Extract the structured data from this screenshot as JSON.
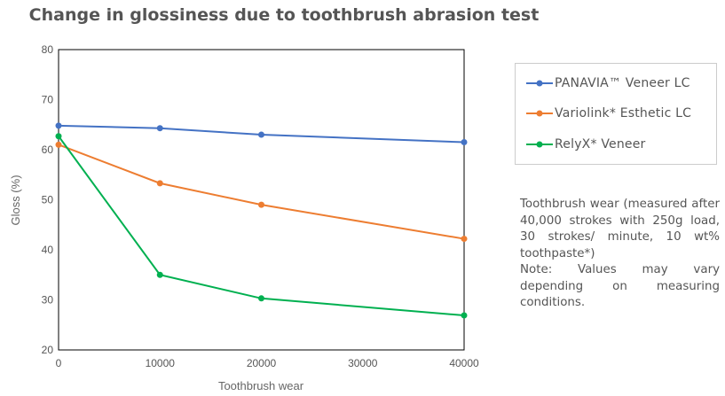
{
  "chart_data": {
    "type": "line",
    "title": "Change in glossiness due to toothbrush abrasion test",
    "xlabel": "Toothbrush wear",
    "ylabel": "Gloss (%)",
    "xlim": [
      0,
      40000
    ],
    "ylim": [
      20,
      80
    ],
    "xticks": [
      0,
      10000,
      20000,
      30000,
      40000
    ],
    "yticks": [
      20,
      30,
      40,
      50,
      60,
      70,
      80
    ],
    "grid": false,
    "legend_position": "right",
    "x": [
      0,
      10000,
      20000,
      40000
    ],
    "series": [
      {
        "name": "PANAVIA™ Veneer LC",
        "color": "#4472c4",
        "values": [
          64.8,
          64.3,
          63.0,
          61.5
        ]
      },
      {
        "name": "Variolink* Esthetic LC",
        "color": "#ed7d31",
        "values": [
          61.0,
          53.3,
          49.0,
          42.2
        ]
      },
      {
        "name": "RelyX* Veneer",
        "color": "#00b050",
        "values": [
          62.7,
          35.0,
          30.3,
          26.9
        ]
      }
    ]
  },
  "note": {
    "line1": "Toothbrush wear (measured after 40,000 strokes with 250g load, 30 strokes/ minute, 10 wt% toothpaste*)",
    "line2": "Note: Values may vary depending on measuring conditions."
  }
}
